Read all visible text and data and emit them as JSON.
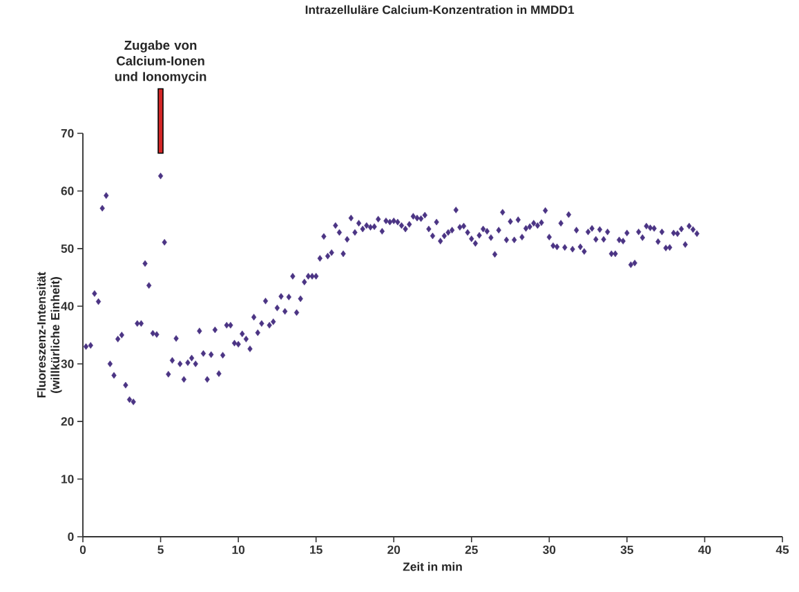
{
  "chart_data": {
    "type": "scatter",
    "title": "Intrazelluläre Calcium-Konzentration in MMDD1",
    "xlabel": "Zeit in min",
    "ylabel": "Fluoreszenz-Intensität (willkürliche Einheit)",
    "xlim": [
      0,
      45
    ],
    "ylim": [
      0,
      70
    ],
    "xticks": [
      0,
      5,
      10,
      15,
      20,
      25,
      30,
      35,
      40,
      45
    ],
    "yticks": [
      0,
      10,
      20,
      30,
      40,
      50,
      60,
      70
    ],
    "marker": "diamond",
    "color": "#4b3484",
    "grid": false,
    "annotations": [
      "Zugabe von Calcium-Ionen und Ionomycin"
    ],
    "x": [
      0.2,
      0.5,
      0.75,
      1.0,
      1.25,
      1.5,
      1.75,
      2.0,
      2.25,
      2.5,
      2.75,
      3.0,
      3.25,
      3.5,
      3.75,
      4.0,
      4.25,
      4.5,
      4.75,
      5.0,
      5.25,
      5.5,
      5.75,
      6.0,
      6.25,
      6.5,
      6.75,
      7.0,
      7.25,
      7.5,
      7.75,
      8.0,
      8.25,
      8.5,
      8.75,
      9.0,
      9.25,
      9.5,
      9.75,
      10.0,
      10.25,
      10.5,
      10.75,
      11.0,
      11.25,
      11.5,
      11.75,
      12.0,
      12.25,
      12.5,
      12.75,
      13.0,
      13.25,
      13.5,
      13.75,
      14.0,
      14.25,
      14.5,
      14.75,
      15.0,
      15.25,
      15.5,
      15.75,
      16.0,
      16.25,
      16.5,
      16.75,
      17.0,
      17.25,
      17.5,
      17.75,
      18.0,
      18.25,
      18.5,
      18.75,
      19.0,
      19.25,
      19.5,
      19.75,
      20.0,
      20.25,
      20.5,
      20.75,
      21.0,
      21.25,
      21.5,
      21.75,
      22.0,
      22.25,
      22.5,
      22.75,
      23.0,
      23.25,
      23.5,
      23.75,
      24.0,
      24.25,
      24.5,
      24.75,
      25.0,
      25.25,
      25.5,
      25.75,
      26.0,
      26.25,
      26.5,
      26.75,
      27.0,
      27.25,
      27.5,
      27.75,
      28.0,
      28.25,
      28.5,
      28.75,
      29.0,
      29.25,
      29.5,
      29.75,
      30.0,
      30.25,
      30.5,
      30.75,
      31.0,
      31.25,
      31.5,
      31.75,
      32.0,
      32.25,
      32.5,
      32.75,
      33.0,
      33.25,
      33.5,
      33.75,
      34.0,
      34.25,
      34.5,
      34.75,
      35.0,
      35.25,
      35.5,
      35.75,
      36.0,
      36.25,
      36.5,
      36.75,
      37.0,
      37.25,
      37.5,
      37.75,
      38.0,
      38.25,
      38.5,
      38.75,
      39.0,
      39.25,
      39.5
    ],
    "values": [
      33.0,
      33.2,
      42.2,
      40.8,
      57.0,
      59.2,
      30.0,
      28.0,
      34.3,
      35.0,
      26.3,
      23.8,
      23.4,
      37.0,
      37.0,
      47.4,
      43.6,
      35.3,
      35.1,
      62.6,
      51.1,
      28.2,
      30.6,
      34.4,
      30.0,
      27.3,
      30.2,
      31.0,
      30.0,
      35.7,
      31.8,
      27.3,
      31.6,
      35.9,
      28.3,
      31.5,
      36.7,
      36.7,
      33.6,
      33.4,
      35.2,
      34.3,
      32.6,
      38.1,
      35.4,
      37.0,
      40.9,
      36.7,
      37.3,
      39.7,
      41.7,
      39.1,
      41.6,
      45.2,
      38.9,
      41.3,
      44.2,
      45.2,
      45.2,
      45.2,
      48.3,
      52.1,
      48.7,
      49.3,
      54.0,
      52.8,
      49.1,
      51.6,
      55.3,
      52.8,
      54.4,
      53.4,
      54.0,
      53.7,
      53.8,
      55.1,
      53.0,
      54.8,
      54.6,
      54.8,
      54.6,
      54.0,
      53.4,
      54.2,
      55.6,
      55.3,
      55.2,
      55.8,
      53.4,
      52.2,
      54.6,
      51.3,
      52.2,
      52.8,
      53.2,
      56.7,
      53.7,
      53.9,
      52.8,
      51.7,
      50.9,
      52.3,
      53.4,
      53.0,
      51.9,
      49.0,
      53.2,
      56.3,
      51.5,
      54.7,
      51.5,
      55.0,
      52.0,
      53.5,
      53.8,
      54.4,
      54.0,
      54.5,
      56.6,
      52.0,
      50.5,
      50.3,
      54.4,
      50.2,
      55.9,
      49.9,
      53.2,
      50.3,
      49.5,
      52.9,
      53.5,
      51.6,
      53.3,
      51.6,
      52.9,
      49.1,
      49.1,
      51.5,
      51.3,
      52.7,
      47.2,
      47.5,
      52.9,
      51.9,
      53.9,
      53.6,
      53.5,
      51.2,
      52.9,
      50.1,
      50.2,
      52.7,
      52.6,
      53.4,
      50.7,
      53.9,
      53.3,
      52.6
    ]
  }
}
